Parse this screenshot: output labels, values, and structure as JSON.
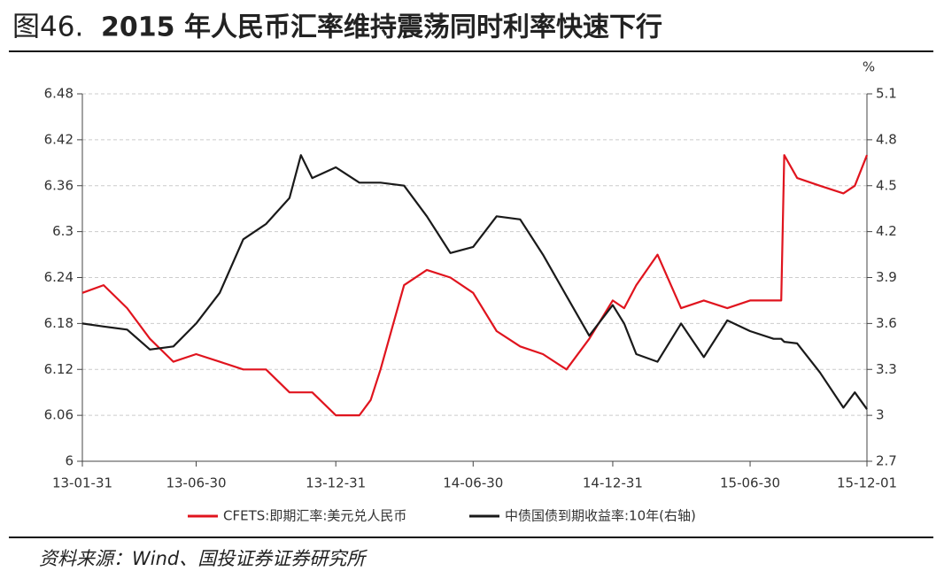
{
  "chart_data": {
    "type": "line",
    "figure_label": "图46.",
    "title": "2015 年人民币汇率维持震荡同时利率快速下行",
    "y2_unit": "%",
    "source": "资料来源：Wind、国投证券证券研究所",
    "x": [
      "13-01-31",
      "13-02-28",
      "13-03-31",
      "13-04-30",
      "13-05-31",
      "13-06-30",
      "13-07-31",
      "13-08-31",
      "13-09-30",
      "13-10-31",
      "13-11-15",
      "13-11-30",
      "13-12-31",
      "14-01-31",
      "14-02-15",
      "14-02-28",
      "14-03-31",
      "14-04-30",
      "14-05-31",
      "14-06-30",
      "14-07-31",
      "14-08-31",
      "14-09-30",
      "14-10-31",
      "14-11-30",
      "14-12-31",
      "15-01-15",
      "15-01-31",
      "15-02-28",
      "15-03-31",
      "15-04-30",
      "15-05-31",
      "15-06-30",
      "15-07-31",
      "15-08-10",
      "15-08-14",
      "15-08-31",
      "15-09-30",
      "15-10-31",
      "15-11-15",
      "15-12-01"
    ],
    "series": [
      {
        "name": "CFETS:即期汇率:美元兑人民币",
        "color": "#e0141e",
        "values": [
          6.22,
          6.23,
          6.2,
          6.16,
          6.13,
          6.14,
          6.13,
          6.12,
          6.12,
          6.09,
          6.09,
          6.09,
          6.06,
          6.06,
          6.08,
          6.12,
          6.23,
          6.25,
          6.24,
          6.22,
          6.17,
          6.15,
          6.14,
          6.12,
          6.16,
          6.21,
          6.2,
          6.23,
          6.27,
          6.2,
          6.21,
          6.2,
          6.21,
          6.21,
          6.21,
          6.4,
          6.37,
          6.36,
          6.35,
          6.36,
          6.4
        ]
      },
      {
        "name": "中债国债到期收益率:10年(右轴)",
        "color": "#1a1a1a",
        "axis": "y2",
        "values": [
          3.6,
          3.58,
          3.56,
          3.43,
          3.45,
          3.6,
          3.8,
          4.15,
          4.25,
          4.42,
          4.7,
          4.55,
          4.62,
          4.52,
          4.52,
          4.52,
          4.5,
          4.3,
          4.06,
          4.1,
          4.3,
          4.28,
          4.05,
          3.78,
          3.52,
          3.72,
          3.6,
          3.4,
          3.35,
          3.6,
          3.38,
          3.62,
          3.55,
          3.5,
          3.5,
          3.48,
          3.47,
          3.28,
          3.05,
          3.15,
          3.04
        ]
      }
    ],
    "xlim": [
      "13-01-31",
      "15-12-01"
    ],
    "xticks": [
      "13-01-31",
      "13-06-30",
      "13-12-31",
      "14-06-30",
      "14-12-31",
      "15-06-30",
      "15-12-01"
    ],
    "ylim": [
      6,
      6.48
    ],
    "yticks": [
      6,
      6.06,
      6.12,
      6.18,
      6.24,
      6.3,
      6.36,
      6.42,
      6.48
    ],
    "y2lim": [
      2.7,
      5.1
    ],
    "y2ticks": [
      2.7,
      3,
      3.3,
      3.6,
      3.9,
      4.2,
      4.5,
      4.8,
      5.1
    ],
    "grid": true
  }
}
